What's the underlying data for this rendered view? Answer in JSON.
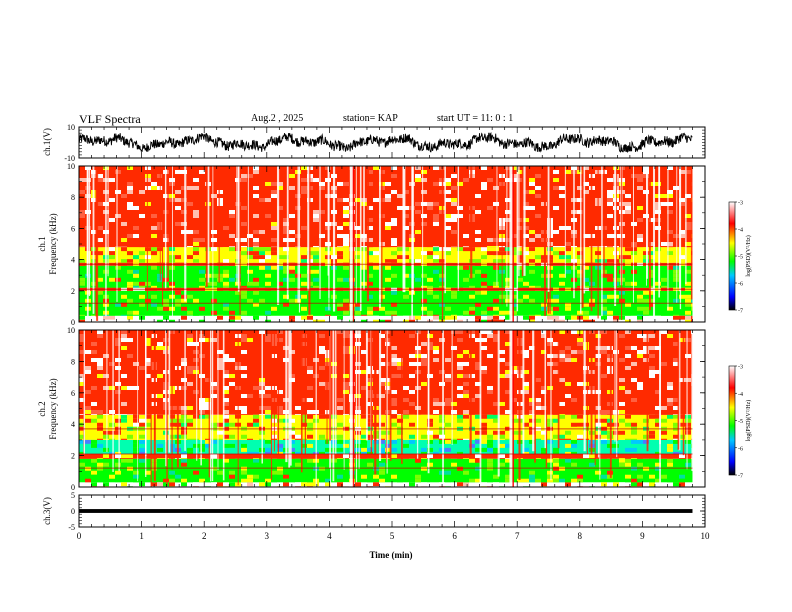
{
  "header": {
    "title": "VLF Spectra",
    "date": "Aug.2  , 2025",
    "station": "station= KAP",
    "start": "start  UT  =   11: 0  : 1"
  },
  "chart_data": [
    {
      "type": "line",
      "name": "ch1-waveform",
      "ylabel": "ch.1(V)",
      "ylim": [
        -10,
        10
      ],
      "ytick_labels": [
        "10",
        "-10"
      ],
      "xlim": [
        0,
        10
      ],
      "x_end": 9.8,
      "approx_range": [
        -6,
        6
      ]
    },
    {
      "type": "heatmap",
      "name": "ch1-spectrogram",
      "ylabel": "ch.1\nFrequency  (kHz)",
      "ylim": [
        0,
        10
      ],
      "ytick_labels": [
        "0",
        "2",
        "4",
        "6",
        "8",
        "10"
      ],
      "xlim": [
        0,
        9.8
      ],
      "colorbar": {
        "label": "log(PSD)(V²/Hz)",
        "range": [
          -7,
          -3
        ],
        "tick_labels": [
          "-3",
          "-4",
          "-5",
          "-6",
          "-7"
        ],
        "colors": [
          "#000000",
          "#0000ff",
          "#00c0ff",
          "#00ff00",
          "#ffff00",
          "#ff0000",
          "#ffffff"
        ]
      },
      "bands_khz": [
        {
          "from": 0.0,
          "to": 0.4,
          "level": "noisy-mixed"
        },
        {
          "from": 0.4,
          "to": 2.0,
          "level": "green"
        },
        {
          "from": 2.0,
          "to": 2.2,
          "level": "line-red"
        },
        {
          "from": 2.2,
          "to": 3.6,
          "level": "green"
        },
        {
          "from": 3.6,
          "to": 3.8,
          "level": "line-red"
        },
        {
          "from": 3.8,
          "to": 4.8,
          "level": "yellow-green"
        },
        {
          "from": 4.8,
          "to": 10.0,
          "level": "red-white"
        }
      ],
      "strong_bursts_min": [
        4.35,
        6.9
      ]
    },
    {
      "type": "heatmap",
      "name": "ch2-spectrogram",
      "ylabel": "ch.2\nFrequency  (kHz)",
      "ylim": [
        0,
        10
      ],
      "ytick_labels": [
        "0",
        "2",
        "4",
        "6",
        "8",
        "10"
      ],
      "xlim": [
        0,
        9.8
      ],
      "colorbar": {
        "label": "log(PSD)(V²/Hz)",
        "range": [
          -7,
          -3
        ],
        "tick_labels": [
          "-3",
          "-4",
          "-5",
          "-6",
          "-7"
        ],
        "colors": [
          "#000000",
          "#0000ff",
          "#00c0ff",
          "#00ff00",
          "#ffff00",
          "#ff0000",
          "#ffffff"
        ]
      },
      "bands_khz": [
        {
          "from": 0.0,
          "to": 0.3,
          "level": "noisy-mixed"
        },
        {
          "from": 0.3,
          "to": 1.8,
          "level": "green"
        },
        {
          "from": 1.8,
          "to": 2.1,
          "level": "line-red"
        },
        {
          "from": 2.1,
          "to": 3.0,
          "level": "cyan-green"
        },
        {
          "from": 3.0,
          "to": 4.6,
          "level": "yellow-green"
        },
        {
          "from": 4.6,
          "to": 10.0,
          "level": "red-white"
        }
      ],
      "strong_bursts_min": [
        4.35,
        6.9
      ]
    },
    {
      "type": "line",
      "name": "ch3-waveform",
      "ylabel": "ch.3(V)",
      "ylim": [
        -5,
        5
      ],
      "ytick_labels": [
        "5",
        "0",
        "-5"
      ],
      "xlim": [
        0,
        10
      ],
      "x_end": 9.8,
      "approx_range": [
        -0.6,
        0.6
      ]
    }
  ],
  "xaxis": {
    "label": "Time  (min)",
    "range": [
      0,
      10
    ],
    "tick_labels": [
      "0",
      "1",
      "2",
      "3",
      "4",
      "5",
      "6",
      "7",
      "8",
      "9",
      "10"
    ]
  }
}
